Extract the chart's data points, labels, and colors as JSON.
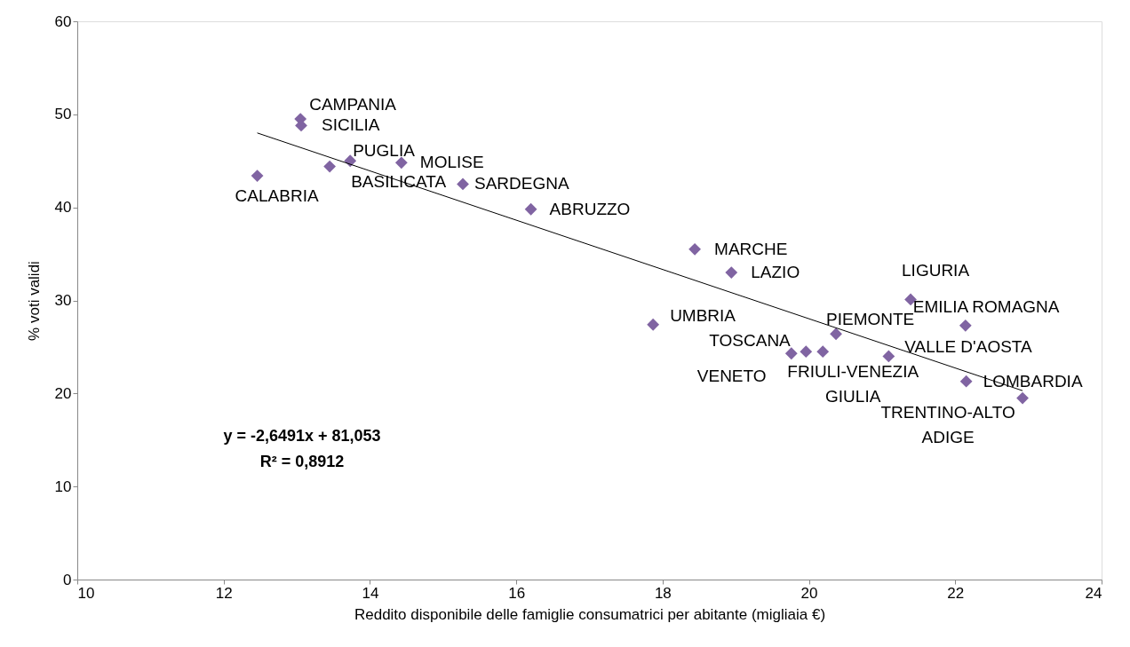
{
  "chart_data": {
    "type": "scatter",
    "xlabel": "Reddito disponibile delle famiglie consumatrici per abitante (migliaia €)",
    "ylabel": "% voti validi",
    "xlim": [
      10,
      24
    ],
    "xticks": [
      10,
      12,
      14,
      16,
      18,
      20,
      22,
      24
    ],
    "ylim": [
      0,
      60
    ],
    "yticks": [
      0,
      10,
      20,
      30,
      40,
      50,
      60
    ],
    "grid": false,
    "marker": "diamond",
    "series": [
      {
        "color": "#8064a2",
        "x": [
          13.05,
          13.06,
          12.46,
          13.45,
          13.73,
          14.43,
          15.27,
          16.2,
          18.44,
          18.94,
          17.87,
          19.76,
          19.96,
          20.19,
          20.37,
          21.09,
          21.39,
          22.14,
          22.15,
          22.92
        ],
        "values": [
          49.5,
          48.8,
          43.4,
          44.4,
          45.0,
          44.8,
          42.5,
          39.8,
          35.5,
          33.0,
          27.4,
          24.3,
          24.5,
          24.5,
          26.4,
          24.0,
          30.1,
          27.3,
          21.3,
          19.5
        ]
      },
      {
        "type": "line",
        "color": "#000000",
        "marker": "none",
        "line_style": "solid",
        "x": [
          12.46,
          22.92
        ],
        "values": [
          48.0,
          20.3
        ]
      }
    ],
    "annotations": [
      {
        "text": "CAMPANIA",
        "x": 13.05,
        "y": 49.5
      },
      {
        "text": "SICILIA",
        "x": 13.06,
        "y": 48.8
      },
      {
        "text": "CALABRIA",
        "x": 12.46,
        "y": 43.4
      },
      {
        "text": "BASILICATA",
        "x": 13.45,
        "y": 44.4
      },
      {
        "text": "PUGLIA",
        "x": 13.73,
        "y": 45.0
      },
      {
        "text": "MOLISE",
        "x": 14.43,
        "y": 44.8
      },
      {
        "text": "SARDEGNA",
        "x": 15.27,
        "y": 42.5
      },
      {
        "text": "ABRUZZO",
        "x": 16.2,
        "y": 39.8
      },
      {
        "text": "MARCHE",
        "x": 18.44,
        "y": 35.5
      },
      {
        "text": "LAZIO",
        "x": 18.94,
        "y": 33.0
      },
      {
        "text": "UMBRIA",
        "x": 17.87,
        "y": 27.4
      },
      {
        "text": "VENETO",
        "x": 19.76,
        "y": 24.3
      },
      {
        "text": "TOSCANA",
        "x": 19.96,
        "y": 24.5
      },
      {
        "text": "FRIULI-VENEZIA\nGIULIA",
        "x": 20.19,
        "y": 24.5
      },
      {
        "text": "PIEMONTE",
        "x": 20.37,
        "y": 26.4
      },
      {
        "text": "VALLE D'AOSTA",
        "x": 21.09,
        "y": 24.0
      },
      {
        "text": "LIGURIA",
        "x": 21.39,
        "y": 30.1
      },
      {
        "text": "EMILIA ROMAGNA",
        "x": 22.14,
        "y": 27.3
      },
      {
        "text": "LOMBARDIA",
        "x": 22.15,
        "y": 21.3
      },
      {
        "text": "TRENTINO-ALTO\nADIGE",
        "x": 22.92,
        "y": 19.5
      },
      "y = -2,6491x + 81,053",
      "R² = 0,8912"
    ]
  }
}
